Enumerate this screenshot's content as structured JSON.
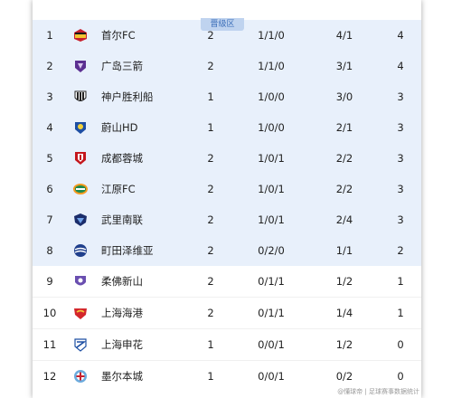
{
  "zone_label": "晋级区",
  "rows": [
    {
      "rank": "1",
      "team": "首尔FC",
      "played": "2",
      "wdl": "1/1/0",
      "goals": "4/1",
      "points": "4",
      "zone": "promo",
      "logo_icon": "fc-seoul-crest-icon"
    },
    {
      "rank": "2",
      "team": "广岛三箭",
      "played": "2",
      "wdl": "1/1/0",
      "goals": "3/1",
      "points": "4",
      "zone": "promo",
      "logo_icon": "sanfrecce-hiroshima-crest-icon"
    },
    {
      "rank": "3",
      "team": "神户胜利船",
      "played": "1",
      "wdl": "1/0/0",
      "goals": "3/0",
      "points": "3",
      "zone": "promo",
      "logo_icon": "vissel-kobe-crest-icon"
    },
    {
      "rank": "4",
      "team": "蔚山HD",
      "played": "1",
      "wdl": "1/0/0",
      "goals": "2/1",
      "points": "3",
      "zone": "promo",
      "logo_icon": "ulsan-hd-crest-icon"
    },
    {
      "rank": "5",
      "team": "成都蓉城",
      "played": "2",
      "wdl": "1/0/1",
      "goals": "2/2",
      "points": "3",
      "zone": "promo",
      "logo_icon": "chengdu-rongcheng-crest-icon"
    },
    {
      "rank": "6",
      "team": "江原FC",
      "played": "2",
      "wdl": "1/0/1",
      "goals": "2/2",
      "points": "3",
      "zone": "promo",
      "logo_icon": "gangwon-fc-crest-icon"
    },
    {
      "rank": "7",
      "team": "武里南联",
      "played": "2",
      "wdl": "1/0/1",
      "goals": "2/4",
      "points": "3",
      "zone": "promo",
      "logo_icon": "buriram-united-crest-icon"
    },
    {
      "rank": "8",
      "team": "町田泽维亚",
      "played": "2",
      "wdl": "0/2/0",
      "goals": "1/1",
      "points": "2",
      "zone": "promo",
      "logo_icon": "machida-zelvia-crest-icon"
    },
    {
      "rank": "9",
      "team": "柔佛新山",
      "played": "2",
      "wdl": "0/1/1",
      "goals": "1/2",
      "points": "1",
      "zone": "normal",
      "logo_icon": "johor-darul-tazim-crest-icon"
    },
    {
      "rank": "10",
      "team": "上海海港",
      "played": "2",
      "wdl": "0/1/1",
      "goals": "1/4",
      "points": "1",
      "zone": "normal",
      "logo_icon": "shanghai-port-crest-icon"
    },
    {
      "rank": "11",
      "team": "上海申花",
      "played": "1",
      "wdl": "0/0/1",
      "goals": "1/2",
      "points": "0",
      "zone": "normal",
      "logo_icon": "shanghai-shenhua-crest-icon"
    },
    {
      "rank": "12",
      "team": "墨尔本城",
      "played": "1",
      "wdl": "0/0/1",
      "goals": "0/2",
      "points": "0",
      "zone": "normal",
      "logo_icon": "melbourne-city-crest-icon"
    }
  ],
  "watermark": "@懂球帝 | 足球赛事数据统计",
  "colors": {
    "promo_row_bg": "#e8f0fb",
    "zone_tag_bg": "#bfd3ef",
    "zone_tag_text": "#3a6db8"
  }
}
